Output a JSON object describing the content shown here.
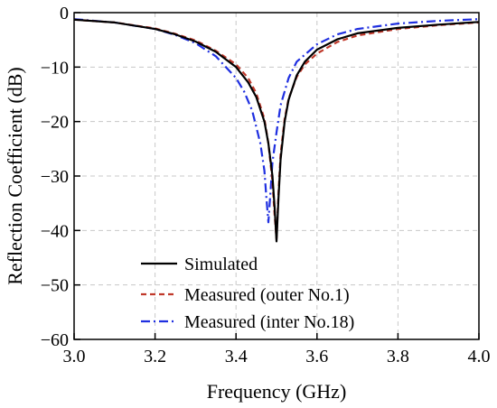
{
  "chart_data": {
    "type": "line",
    "xlabel": "Frequency (GHz)",
    "ylabel": "Reflection Coefficient (dB)",
    "xlim": [
      3.0,
      4.0
    ],
    "ylim": [
      -60,
      0
    ],
    "xticks": [
      3.0,
      3.2,
      3.4,
      3.6,
      3.8,
      4.0
    ],
    "xtick_labels": [
      "3.0",
      "3.2",
      "3.4",
      "3.6",
      "3.8",
      "4.0"
    ],
    "yticks": [
      0,
      -10,
      -20,
      -30,
      -40,
      -50,
      -60
    ],
    "ytick_labels": [
      "0",
      "−10",
      "−20",
      "−30",
      "−40",
      "−50",
      "−60"
    ],
    "grid": true,
    "legend_position": "bottom-center",
    "series": [
      {
        "name": "Simulated",
        "color": "#000000",
        "dash": "solid",
        "x": [
          3.0,
          3.1,
          3.2,
          3.25,
          3.3,
          3.35,
          3.4,
          3.43,
          3.45,
          3.47,
          3.48,
          3.49,
          3.495,
          3.5,
          3.505,
          3.51,
          3.52,
          3.53,
          3.55,
          3.57,
          3.6,
          3.65,
          3.7,
          3.8,
          3.9,
          4.0
        ],
        "y": [
          -1.3,
          -1.8,
          -3.0,
          -4.0,
          -5.3,
          -7.2,
          -10.0,
          -12.8,
          -15.5,
          -20.0,
          -24.0,
          -30.0,
          -35.5,
          -42.0,
          -34.0,
          -27.0,
          -20.0,
          -16.0,
          -11.5,
          -9.0,
          -6.8,
          -4.9,
          -3.8,
          -2.8,
          -2.2,
          -1.7
        ]
      },
      {
        "name": "Measured (outer No.1)",
        "color": "#c0392b",
        "dash": "dashed",
        "x": [
          3.0,
          3.1,
          3.2,
          3.25,
          3.3,
          3.35,
          3.4,
          3.43,
          3.45,
          3.47,
          3.48,
          3.49,
          3.495,
          3.5,
          3.505,
          3.51,
          3.52,
          3.53,
          3.55,
          3.57,
          3.6,
          3.65,
          3.7,
          3.8,
          3.9,
          4.0
        ],
        "y": [
          -1.3,
          -1.8,
          -2.9,
          -3.9,
          -5.1,
          -7.0,
          -9.5,
          -12.0,
          -14.8,
          -19.5,
          -24.0,
          -31.0,
          -37.0,
          -41.5,
          -33.0,
          -26.0,
          -19.5,
          -15.8,
          -11.8,
          -9.5,
          -7.5,
          -5.4,
          -4.2,
          -3.0,
          -2.3,
          -1.8
        ]
      },
      {
        "name": "Measured (inter No.18)",
        "color": "#1f2fe0",
        "dash": "dashdot",
        "x": [
          3.0,
          3.1,
          3.2,
          3.25,
          3.3,
          3.35,
          3.4,
          3.42,
          3.44,
          3.46,
          3.47,
          3.475,
          3.48,
          3.485,
          3.49,
          3.5,
          3.51,
          3.53,
          3.55,
          3.6,
          3.65,
          3.7,
          3.8,
          3.9,
          4.0
        ],
        "y": [
          -1.2,
          -1.8,
          -3.0,
          -4.1,
          -5.6,
          -8.0,
          -12.0,
          -14.5,
          -18.0,
          -24.0,
          -29.0,
          -34.0,
          -38.5,
          -33.0,
          -27.5,
          -22.0,
          -17.0,
          -12.0,
          -9.0,
          -5.8,
          -4.0,
          -3.0,
          -2.0,
          -1.5,
          -1.2
        ]
      }
    ]
  }
}
